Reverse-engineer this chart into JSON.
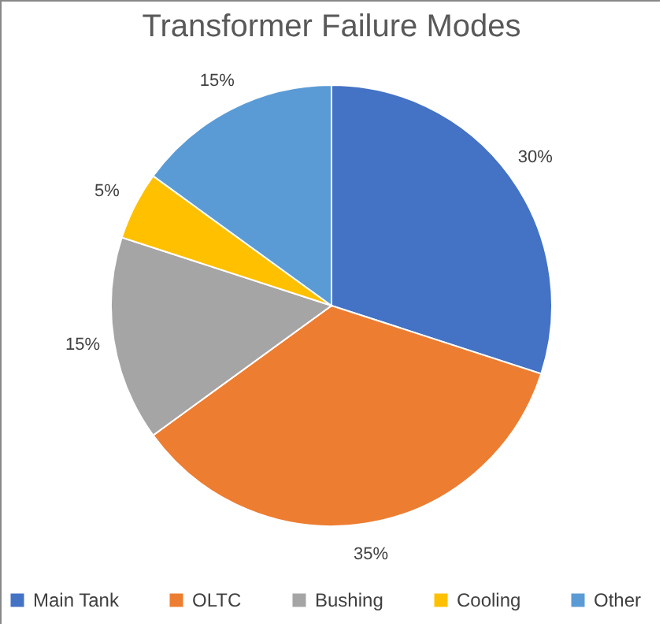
{
  "chart_data": {
    "type": "pie",
    "title": "Transformer Failure Modes",
    "categories": [
      "Main Tank",
      "OLTC",
      "Bushing",
      "Cooling",
      "Other"
    ],
    "values": [
      30,
      35,
      15,
      5,
      15
    ],
    "colors": [
      "#4472c4",
      "#ed7d31",
      "#a5a5a5",
      "#ffc000",
      "#5b9bd5"
    ],
    "value_labels": [
      "30%",
      "35%",
      "15%",
      "5%",
      "15%"
    ],
    "legend": "bottom"
  }
}
